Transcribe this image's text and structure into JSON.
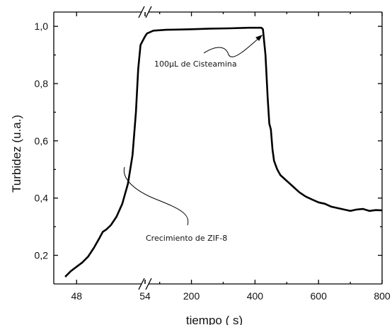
{
  "chart_data": {
    "type": "line",
    "xlabel": "tiempo  ( s)",
    "ylabel": "Turbidez  (u.a.)",
    "ylim": [
      0.1,
      1.05
    ],
    "grid": false,
    "broken_axis": true,
    "x_segments": [
      {
        "range": [
          46,
          54
        ],
        "ticks": [
          48,
          54
        ],
        "tick_labels": [
          "48",
          "54"
        ]
      },
      {
        "range": [
          54,
          800
        ],
        "ticks": [
          54,
          200,
          400,
          600,
          800
        ],
        "tick_labels": [
          "54",
          "200",
          "400",
          "600",
          "800"
        ]
      }
    ],
    "y_ticks": [
      0.2,
      0.4,
      0.6,
      0.8,
      1.0
    ],
    "y_tick_labels": [
      "0,2",
      "0,4",
      "0,6",
      "0,8",
      "1,0"
    ],
    "series": [
      {
        "points": [
          [
            47,
            0.125
          ],
          [
            47.5,
            0.145
          ],
          [
            48,
            0.16
          ],
          [
            48.5,
            0.175
          ],
          [
            49,
            0.195
          ],
          [
            49.5,
            0.225
          ],
          [
            50,
            0.26
          ],
          [
            50.3,
            0.282
          ],
          [
            50.6,
            0.29
          ],
          [
            51,
            0.305
          ],
          [
            51.5,
            0.335
          ],
          [
            52,
            0.38
          ],
          [
            52.5,
            0.45
          ],
          [
            52.9,
            0.55
          ],
          [
            53.2,
            0.7
          ],
          [
            53.4,
            0.85
          ],
          [
            53.6,
            0.935
          ],
          [
            53.8,
            0.95
          ],
          [
            54,
            0.965
          ],
          [
            60,
            0.975
          ],
          [
            80,
            0.985
          ],
          [
            120,
            0.988
          ],
          [
            200,
            0.99
          ],
          [
            260,
            0.992
          ],
          [
            320,
            0.993
          ],
          [
            380,
            0.995
          ],
          [
            420,
            0.995
          ],
          [
            425,
            0.99
          ],
          [
            433,
            0.9
          ],
          [
            440,
            0.75
          ],
          [
            445,
            0.66
          ],
          [
            450,
            0.64
          ],
          [
            455,
            0.57
          ],
          [
            460,
            0.53
          ],
          [
            470,
            0.5
          ],
          [
            480,
            0.48
          ],
          [
            500,
            0.46
          ],
          [
            520,
            0.44
          ],
          [
            540,
            0.42
          ],
          [
            560,
            0.405
          ],
          [
            580,
            0.395
          ],
          [
            600,
            0.385
          ],
          [
            620,
            0.38
          ],
          [
            640,
            0.37
          ],
          [
            660,
            0.365
          ],
          [
            680,
            0.36
          ],
          [
            700,
            0.355
          ],
          [
            720,
            0.36
          ],
          [
            740,
            0.362
          ],
          [
            760,
            0.355
          ],
          [
            780,
            0.358
          ],
          [
            800,
            0.357
          ]
        ]
      }
    ],
    "annotations": [
      {
        "text": "100µL de Cisteamina",
        "x": 300,
        "y": 0.935
      },
      {
        "text": "Crecimiento de ZIF-8",
        "x": 53.2,
        "y": 0.25
      }
    ]
  }
}
